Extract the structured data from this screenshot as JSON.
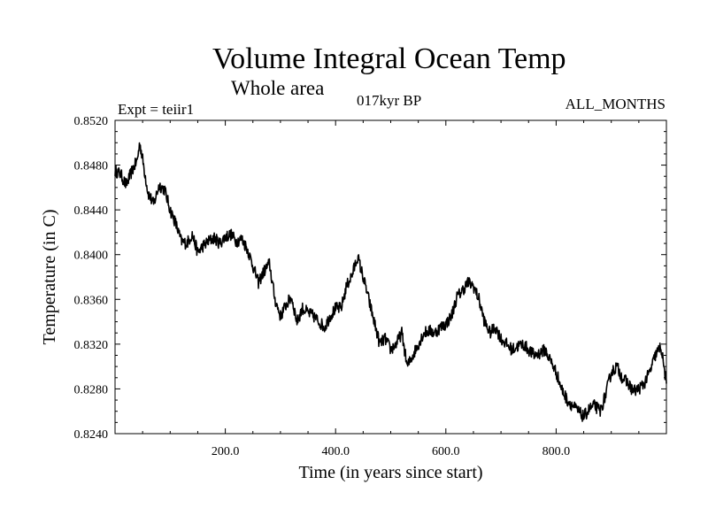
{
  "header": {
    "title": "Volume Integral Ocean Temp",
    "subtitle": "Whole area",
    "period": "017kyr BP",
    "experiment": "Expt = teiir1",
    "months": "ALL_MONTHS"
  },
  "chart_data": {
    "type": "line",
    "xlabel": "Time (in years since start)",
    "ylabel": "Temperature (in C)",
    "xlim": [
      0,
      1000
    ],
    "ylim": [
      0.824,
      0.852
    ],
    "xticks": [
      200,
      400,
      600,
      800
    ],
    "xtick_labels": [
      "200.0",
      "400.0",
      "600.0",
      "800.0"
    ],
    "yticks": [
      0.824,
      0.828,
      0.832,
      0.836,
      0.84,
      0.844,
      0.848,
      0.852
    ],
    "ytick_labels": [
      "0.8240",
      "0.8280",
      "0.8320",
      "0.8360",
      "0.8400",
      "0.8440",
      "0.8480",
      "0.8520"
    ],
    "grid": false,
    "line_color": "#000000",
    "series": [
      {
        "x": [
          0,
          10,
          20,
          30,
          40,
          45,
          50,
          60,
          70,
          80,
          90,
          100,
          110,
          120,
          130,
          140,
          150,
          160,
          170,
          180,
          190,
          200,
          210,
          220,
          230,
          240,
          250,
          260,
          270,
          280,
          290,
          300,
          310,
          320,
          330,
          340,
          350,
          360,
          370,
          380,
          390,
          400,
          410,
          420,
          430,
          440,
          450,
          460,
          470,
          480,
          490,
          500,
          510,
          520,
          530,
          540,
          550,
          560,
          570,
          580,
          590,
          600,
          610,
          620,
          630,
          640,
          650,
          660,
          670,
          680,
          690,
          700,
          710,
          720,
          730,
          740,
          750,
          760,
          770,
          780,
          790,
          800,
          810,
          820,
          830,
          840,
          850,
          860,
          870,
          880,
          890,
          900,
          910,
          920,
          930,
          940,
          950,
          960,
          970,
          980,
          990,
          1000
        ],
        "y": [
          0.8475,
          0.8472,
          0.8462,
          0.8474,
          0.8484,
          0.85,
          0.8485,
          0.8455,
          0.8445,
          0.8462,
          0.8458,
          0.844,
          0.8428,
          0.8412,
          0.841,
          0.8418,
          0.8402,
          0.8408,
          0.8412,
          0.8415,
          0.841,
          0.8416,
          0.8418,
          0.8412,
          0.8414,
          0.8405,
          0.839,
          0.8375,
          0.8385,
          0.8392,
          0.836,
          0.8345,
          0.8355,
          0.8362,
          0.834,
          0.8352,
          0.8348,
          0.8345,
          0.834,
          0.8335,
          0.8345,
          0.8352,
          0.8352,
          0.8372,
          0.8382,
          0.8398,
          0.838,
          0.836,
          0.834,
          0.832,
          0.8325,
          0.8315,
          0.832,
          0.833,
          0.83,
          0.831,
          0.832,
          0.833,
          0.8332,
          0.833,
          0.8335,
          0.8338,
          0.8345,
          0.8362,
          0.8368,
          0.8375,
          0.8372,
          0.836,
          0.834,
          0.833,
          0.8335,
          0.8325,
          0.832,
          0.8315,
          0.8318,
          0.832,
          0.8315,
          0.831,
          0.8312,
          0.8315,
          0.8305,
          0.8295,
          0.828,
          0.827,
          0.8265,
          0.826,
          0.8255,
          0.8262,
          0.8265,
          0.826,
          0.8275,
          0.8295,
          0.83,
          0.829,
          0.8285,
          0.8278,
          0.828,
          0.8285,
          0.8295,
          0.831,
          0.8318,
          0.8285
        ]
      }
    ]
  }
}
